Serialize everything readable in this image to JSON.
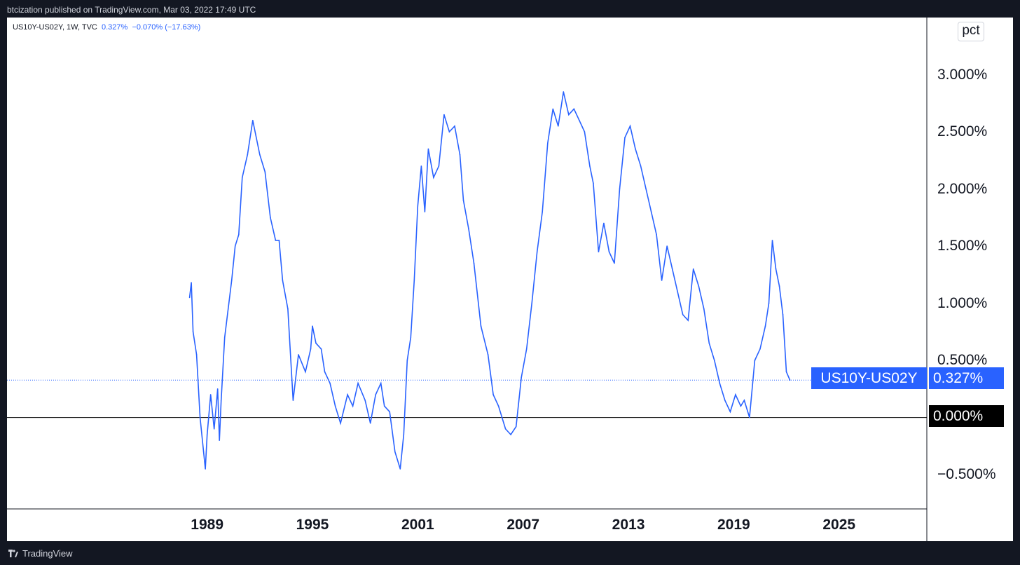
{
  "header": {
    "text": "btcization published on TradingView.com, Mar 03, 2022 17:49 UTC"
  },
  "legend": {
    "symbol": "US10Y-US02Y, 1W, TVC",
    "last": "0.327%",
    "change": "−0.070% (−17.63%)"
  },
  "scale_button": "pct",
  "series_label": "US10Y-US02Y",
  "last_value_label": "0.327%",
  "zero_label": "0.000%",
  "footer": {
    "brand": "TradingView"
  },
  "colors": {
    "line": "#2962ff",
    "background": "#ffffff",
    "frame": "#131722"
  },
  "chart_data": {
    "type": "line",
    "title": "US10Y-US02Y, 1W, TVC",
    "ylabel": "pct",
    "ylim": [
      -0.8,
      3.5
    ],
    "xlim": [
      1977.6,
      2030.0
    ],
    "y_ticks": [
      "3.000%",
      "2.500%",
      "2.000%",
      "1.500%",
      "1.000%",
      "0.500%",
      "0.000%",
      "−0.500%"
    ],
    "y_tick_values": [
      3.0,
      2.5,
      2.0,
      1.5,
      1.0,
      0.5,
      0.0,
      -0.5
    ],
    "x_ticks": [
      "1989",
      "1995",
      "2001",
      "2007",
      "2013",
      "2019",
      "2025"
    ],
    "x_tick_values": [
      1989,
      1995,
      2001,
      2007,
      2013,
      2019,
      2025
    ],
    "last_value": 0.327,
    "series": [
      {
        "name": "US10Y-US02Y",
        "x": [
          1988.0,
          1988.1,
          1988.2,
          1988.4,
          1988.6,
          1988.8,
          1988.9,
          1989.0,
          1989.2,
          1989.4,
          1989.6,
          1989.7,
          1989.8,
          1990.0,
          1990.2,
          1990.4,
          1990.6,
          1990.8,
          1991.0,
          1991.3,
          1991.6,
          1992.0,
          1992.3,
          1992.6,
          1992.9,
          1993.1,
          1993.3,
          1993.6,
          1993.9,
          1994.2,
          1994.6,
          1994.9,
          1995.0,
          1995.2,
          1995.5,
          1995.7,
          1996.0,
          1996.3,
          1996.6,
          1997.0,
          1997.3,
          1997.6,
          1998.0,
          1998.3,
          1998.6,
          1998.9,
          1999.1,
          1999.4,
          1999.7,
          2000.0,
          2000.2,
          2000.4,
          2000.6,
          2000.8,
          2001.0,
          2001.2,
          2001.4,
          2001.6,
          2001.9,
          2002.2,
          2002.5,
          2002.8,
          2003.1,
          2003.4,
          2003.6,
          2003.9,
          2004.2,
          2004.6,
          2005.0,
          2005.3,
          2005.6,
          2006.0,
          2006.3,
          2006.6,
          2006.9,
          2007.2,
          2007.5,
          2007.8,
          2008.1,
          2008.4,
          2008.7,
          2009.0,
          2009.3,
          2009.6,
          2009.9,
          2010.2,
          2010.5,
          2010.8,
          2011.0,
          2011.3,
          2011.6,
          2011.9,
          2012.2,
          2012.5,
          2012.8,
          2013.1,
          2013.4,
          2013.7,
          2014.0,
          2014.3,
          2014.6,
          2014.9,
          2015.2,
          2015.5,
          2015.8,
          2016.1,
          2016.4,
          2016.7,
          2017.0,
          2017.3,
          2017.6,
          2017.9,
          2018.2,
          2018.5,
          2018.8,
          2019.1,
          2019.4,
          2019.6,
          2019.9,
          2020.2,
          2020.5,
          2020.8,
          2021.0,
          2021.2,
          2021.4,
          2021.6,
          2021.8,
          2022.0,
          2022.2
        ],
        "values": [
          1.05,
          1.18,
          0.75,
          0.55,
          0.0,
          -0.3,
          -0.45,
          -0.15,
          0.2,
          -0.1,
          0.25,
          -0.2,
          0.15,
          0.7,
          0.95,
          1.2,
          1.5,
          1.6,
          2.1,
          2.3,
          2.6,
          2.3,
          2.15,
          1.75,
          1.55,
          1.55,
          1.2,
          0.95,
          0.15,
          0.55,
          0.4,
          0.6,
          0.8,
          0.65,
          0.6,
          0.4,
          0.3,
          0.1,
          -0.05,
          0.2,
          0.1,
          0.3,
          0.15,
          -0.05,
          0.2,
          0.3,
          0.1,
          0.05,
          -0.3,
          -0.45,
          -0.15,
          0.5,
          0.7,
          1.2,
          1.85,
          2.2,
          1.8,
          2.35,
          2.1,
          2.2,
          2.65,
          2.5,
          2.55,
          2.3,
          1.9,
          1.65,
          1.35,
          0.8,
          0.55,
          0.2,
          0.1,
          -0.1,
          -0.15,
          -0.08,
          0.35,
          0.6,
          1.0,
          1.45,
          1.8,
          2.4,
          2.7,
          2.55,
          2.85,
          2.65,
          2.7,
          2.6,
          2.5,
          2.2,
          2.05,
          1.45,
          1.7,
          1.45,
          1.35,
          2.0,
          2.45,
          2.55,
          2.35,
          2.2,
          2.0,
          1.8,
          1.6,
          1.2,
          1.5,
          1.3,
          1.1,
          0.9,
          0.85,
          1.3,
          1.15,
          0.95,
          0.65,
          0.5,
          0.3,
          0.15,
          0.05,
          0.2,
          0.1,
          0.15,
          0.0,
          0.5,
          0.6,
          0.8,
          1.0,
          1.55,
          1.3,
          1.15,
          0.9,
          0.4,
          0.327
        ]
      }
    ]
  }
}
